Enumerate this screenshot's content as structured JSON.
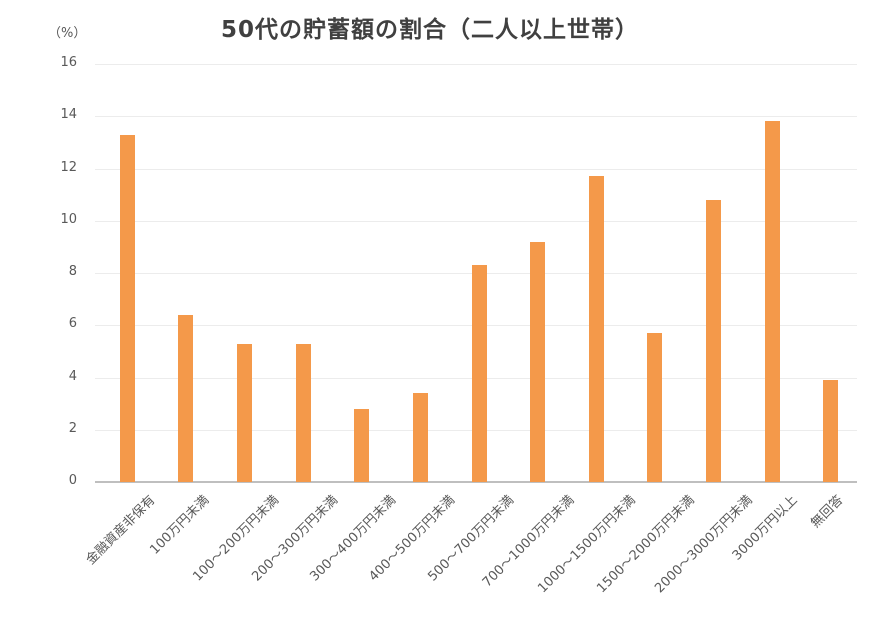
{
  "title": "50代の貯蓄額の割合（二人以上世帯）",
  "unit_label": "（%）",
  "colors": {
    "bar": "#f4994a",
    "grid": "#ececec",
    "axis": "#bfbfbf",
    "text": "#595959"
  },
  "y_ticks": [
    "16",
    "14",
    "12",
    "10",
    "8",
    "6",
    "4",
    "2",
    "0"
  ],
  "chart_data": {
    "type": "bar",
    "title": "50代の貯蓄額の割合（二人以上世帯）",
    "xlabel": "",
    "ylabel": "（%）",
    "ylim": [
      0,
      16
    ],
    "yticks": [
      0,
      2,
      4,
      6,
      8,
      10,
      12,
      14,
      16
    ],
    "grid": true,
    "legend": null,
    "categories": [
      "金融資産非保有",
      "100万円未満",
      "100～200万円未満",
      "200～300万円未満",
      "300～400万円未満",
      "400～500万円未満",
      "500～700万円未満",
      "700～1000万円未満",
      "1000～1500万円未満",
      "1500～2000万円未満",
      "2000～3000万円未満",
      "3000万円以上",
      "無回答"
    ],
    "values": [
      13.3,
      6.4,
      5.3,
      5.3,
      2.8,
      3.4,
      8.3,
      9.2,
      11.7,
      5.7,
      10.8,
      13.8,
      3.9
    ]
  }
}
